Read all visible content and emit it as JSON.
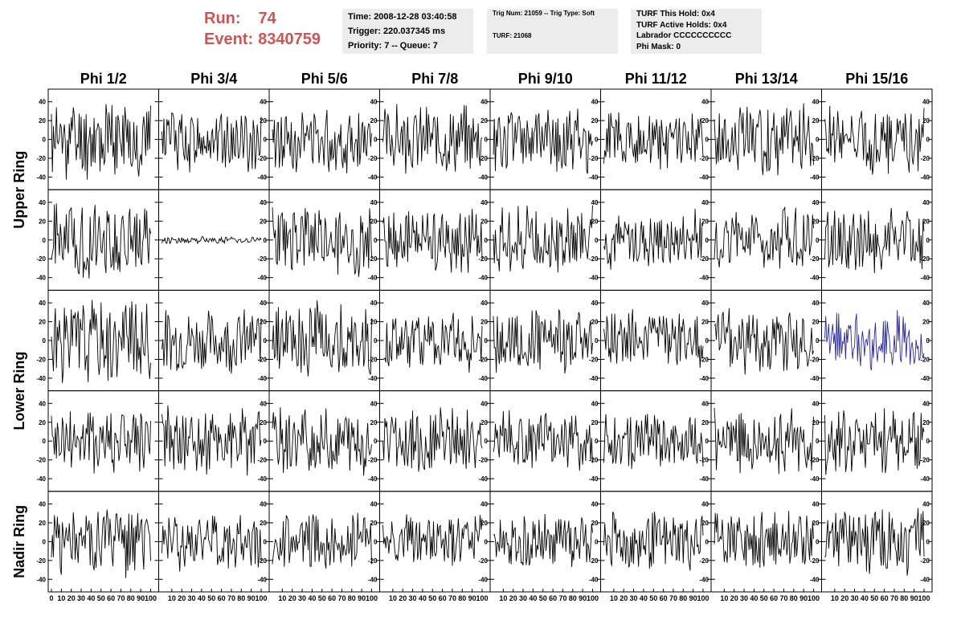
{
  "header": {
    "run_label": "Run:",
    "run_value": "74",
    "event_label": "Event:",
    "event_value": "8340759",
    "time_text": "Time: 2008-12-28 03:40:58",
    "trigger_text": "Trigger: 220.037345 ms",
    "priority_text": "Priority: 7 -- Queue: 7",
    "trig_num_text": "Trig Num: 21059 -- Trig Type: Soft",
    "turf_text": "TURF: 21068",
    "turf_hold_text": "TURF This Hold: 0x4",
    "turf_active_text": "TURF Active Holds: 0x4",
    "labrador_text": "Labrador CCCCCCCCCC",
    "phi_mask_text": "Phi Mask: 0"
  },
  "chart_data": {
    "type": "line",
    "columns": [
      "Phi 1/2",
      "Phi 3/4",
      "Phi 5/6",
      "Phi 7/8",
      "Phi 9/10",
      "Phi 11/12",
      "Phi 13/14",
      "Phi 15/16"
    ],
    "ring_labels": [
      {
        "label": "Upper Ring",
        "rows": [
          0,
          1
        ]
      },
      {
        "label": "Lower Ring",
        "rows": [
          2,
          3
        ]
      },
      {
        "label": "Nadir Ring",
        "rows": [
          4
        ]
      }
    ],
    "row_count": 5,
    "xlim": [
      0,
      100
    ],
    "ylim": [
      -50,
      50
    ],
    "x_tick_labels": [
      "0",
      "10",
      "20",
      "30",
      "40",
      "50",
      "60",
      "70",
      "80",
      "90",
      "100"
    ],
    "y_tick_labels": [
      "40",
      "20",
      "0",
      "-20",
      "-40"
    ],
    "x_samples": 100,
    "line_color": "#000000",
    "highlight_color": "#2a2a96",
    "rows": [
      [
        {
          "amp": 0.9,
          "seed": 11
        },
        {
          "amp": 0.7,
          "seed": 12
        },
        {
          "amp": 0.75,
          "seed": 13
        },
        {
          "amp": 0.75,
          "seed": 14
        },
        {
          "amp": 0.75,
          "seed": 15
        },
        {
          "amp": 0.65,
          "seed": 16
        },
        {
          "amp": 0.8,
          "seed": 17
        },
        {
          "amp": 0.75,
          "seed": 18
        }
      ],
      [
        {
          "amp": 0.85,
          "seed": 21
        },
        {
          "amp": 0.08,
          "seed": 22
        },
        {
          "amp": 0.8,
          "seed": 23
        },
        {
          "amp": 0.7,
          "seed": 24
        },
        {
          "amp": 0.75,
          "seed": 25
        },
        {
          "amp": 0.65,
          "seed": 26
        },
        {
          "amp": 0.7,
          "seed": 27
        },
        {
          "amp": 0.75,
          "seed": 28
        }
      ],
      [
        {
          "amp": 0.95,
          "seed": 31
        },
        {
          "amp": 0.7,
          "seed": 32
        },
        {
          "amp": 0.85,
          "seed": 33
        },
        {
          "amp": 0.7,
          "seed": 34
        },
        {
          "amp": 0.7,
          "seed": 35
        },
        {
          "amp": 0.65,
          "seed": 36
        },
        {
          "amp": 0.75,
          "seed": 37
        },
        {
          "amp": 0.65,
          "seed": 38,
          "highlight": true
        }
      ],
      [
        {
          "amp": 0.8,
          "seed": 41
        },
        {
          "amp": 0.8,
          "seed": 42
        },
        {
          "amp": 0.75,
          "seed": 43
        },
        {
          "amp": 0.75,
          "seed": 44
        },
        {
          "amp": 0.65,
          "seed": 45
        },
        {
          "amp": 0.65,
          "seed": 46
        },
        {
          "amp": 0.7,
          "seed": 47
        },
        {
          "amp": 0.85,
          "seed": 48
        }
      ],
      [
        {
          "amp": 0.8,
          "seed": 51
        },
        {
          "amp": 0.65,
          "seed": 52
        },
        {
          "amp": 0.65,
          "seed": 53
        },
        {
          "amp": 0.6,
          "seed": 54
        },
        {
          "amp": 0.6,
          "seed": 55
        },
        {
          "amp": 0.65,
          "seed": 56
        },
        {
          "amp": 0.65,
          "seed": 57
        },
        {
          "amp": 0.75,
          "seed": 58
        }
      ]
    ]
  }
}
